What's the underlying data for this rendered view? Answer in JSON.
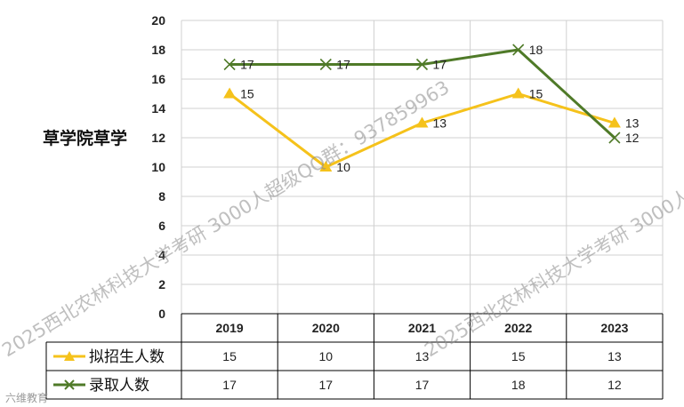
{
  "chart_data": {
    "type": "line",
    "categories": [
      "2019",
      "2020",
      "2021",
      "2022",
      "2023"
    ],
    "series": [
      {
        "name": "拟招生人数",
        "values": [
          15,
          10,
          13,
          15,
          13
        ],
        "color": "#f5c21b",
        "marker": "triangle"
      },
      {
        "name": "录取人数",
        "values": [
          17,
          17,
          17,
          18,
          12
        ],
        "color": "#4f7a28",
        "marker": "x"
      }
    ],
    "ylabel": "草学院草学",
    "ylim": [
      0,
      20
    ],
    "yticks": [
      0,
      2,
      4,
      6,
      8,
      10,
      12,
      14,
      16,
      18,
      20
    ],
    "grid": true,
    "legend": "data-table-left"
  },
  "watermark": "2025西北农林科技大学考研 3000人超级QQ群：937859963",
  "brand": "六维教育"
}
